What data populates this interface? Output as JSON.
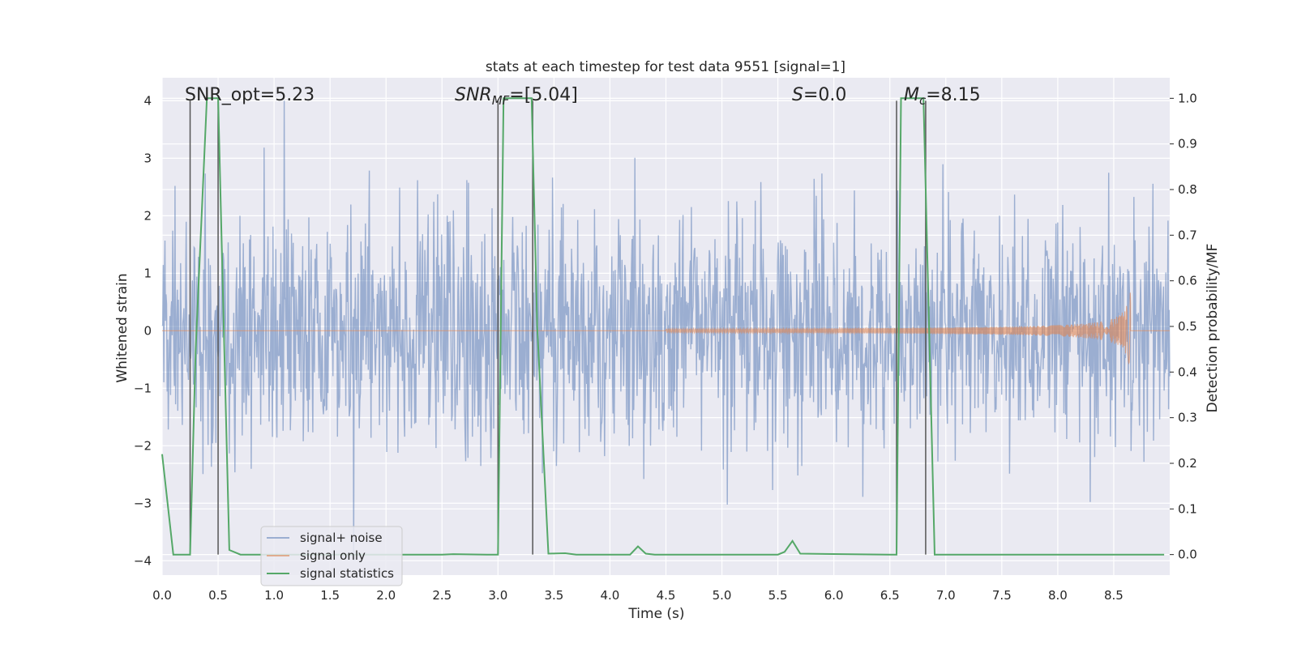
{
  "chart_data": {
    "type": "line",
    "title": "stats at each timestep for test data 9551 [signal=1]",
    "xlabel": "Time (s)",
    "ylabel": "Whitened strain",
    "ylabel_right": "Detection probability/MF",
    "xlim": [
      0.0,
      9.0
    ],
    "ylim": [
      -4.25,
      4.4
    ],
    "ylim_right": [
      -0.045,
      1.045
    ],
    "x_ticks": [
      "0.0",
      "0.5",
      "1.0",
      "1.5",
      "2.0",
      "2.5",
      "3.0",
      "3.5",
      "4.0",
      "4.5",
      "5.0",
      "5.5",
      "6.0",
      "6.5",
      "7.0",
      "7.5",
      "8.0",
      "8.5"
    ],
    "y_ticks": [
      "4",
      "3",
      "2",
      "1",
      "0",
      "−1",
      "−2",
      "−3",
      "−4"
    ],
    "y_ticks_right": [
      "1.0",
      "0.9",
      "0.8",
      "0.7",
      "0.6",
      "0.5",
      "0.4",
      "0.3",
      "0.2",
      "0.1",
      "0.0"
    ],
    "grid": true,
    "legend_position": "lower-left",
    "annotations": {
      "snr_opt": "SNR_opt=5.23",
      "snr_mf_main": "SNR",
      "snr_mf_sub": "MF",
      "snr_mf_value": "=[5.04]",
      "s_main": "S",
      "s_value": "=0.0",
      "mc_main": "M",
      "mc_sub": "c",
      "mc_value": "=8.15"
    },
    "vertical_lines_x": [
      0.25,
      0.5,
      3.0,
      3.31,
      6.56,
      6.82
    ],
    "series": [
      {
        "name": "signal+ noise",
        "color": "#4c72b0",
        "description_level": "Gaussian-like whitened noise, envelope about ±2.5 with spikes to ±4",
        "noise_sigma": 1.0,
        "spike_max": 4.0
      },
      {
        "name": "signal only",
        "color": "#dd8452",
        "chirp_start_x": 4.5,
        "chirp_end_x": 8.65,
        "peak_amplitude": 0.8
      },
      {
        "name": "signal statistics",
        "color": "#55a868",
        "axis": "right",
        "x": [
          0.0,
          0.1,
          0.2,
          0.25,
          0.3,
          0.4,
          0.45,
          0.5,
          0.55,
          0.6,
          0.7,
          1.0,
          2.0,
          2.5,
          2.6,
          2.9,
          3.0,
          3.05,
          3.1,
          3.3,
          3.35,
          3.45,
          3.6,
          3.7,
          4.1,
          4.18,
          4.25,
          4.32,
          4.4,
          5.0,
          5.5,
          5.56,
          5.63,
          5.7,
          6.5,
          6.56,
          6.6,
          6.65,
          6.8,
          6.85,
          6.9,
          7.0,
          8.0,
          8.5,
          8.95
        ],
        "y": [
          0.22,
          0.0,
          0.0,
          0.0,
          0.45,
          1.0,
          1.0,
          1.0,
          0.5,
          0.01,
          0.0,
          0.0,
          0.0,
          0.0,
          0.001,
          0.0,
          0.0,
          1.0,
          1.0,
          1.0,
          0.5,
          0.002,
          0.003,
          0.0,
          0.0,
          0.0,
          0.018,
          0.002,
          0.0,
          0.0,
          0.0,
          0.006,
          0.03,
          0.002,
          0.0,
          0.0,
          1.0,
          1.0,
          1.0,
          0.5,
          0.0,
          0.0,
          0.0,
          0.0,
          0.0
        ]
      }
    ]
  }
}
